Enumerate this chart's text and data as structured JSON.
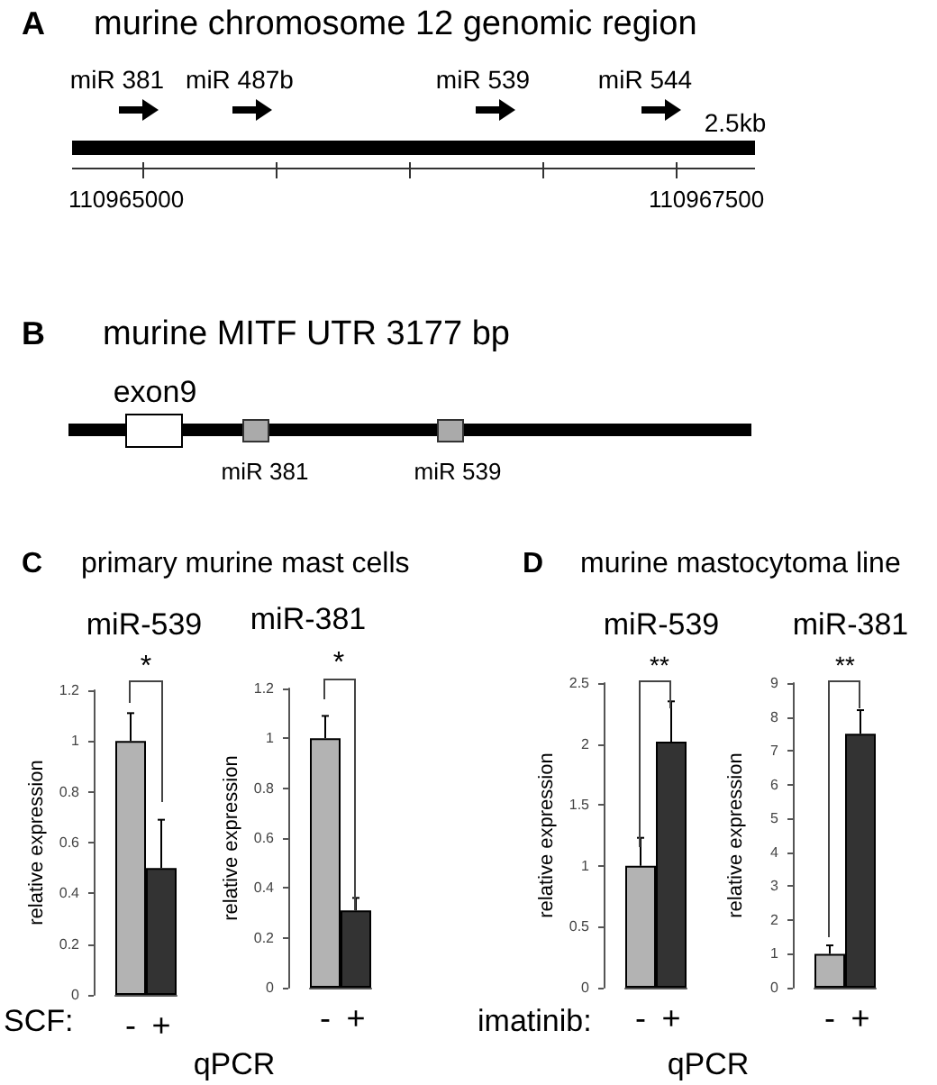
{
  "chart_data": [
    {
      "type": "other",
      "title": "murine chromosome 12 genomic region",
      "annotations": [
        "A",
        "miR 381",
        "miR 487b",
        "miR 539",
        "miR 544",
        "2.5kb",
        "110965000",
        "110967500"
      ]
    },
    {
      "type": "other",
      "title": "murine MITF UTR 3177 bp",
      "annotations": [
        "B",
        "exon9",
        "miR 381",
        "miR 539"
      ]
    },
    {
      "type": "bar",
      "title": "miR-539",
      "ylabel": "relative expression",
      "categories": [
        "-",
        "+"
      ],
      "values": [
        1,
        0.5
      ],
      "colors": [
        "#b3b3b3",
        "#333333"
      ],
      "errors": [
        [
          1,
          1.11
        ],
        [
          0.5,
          0.69
        ]
      ],
      "ylim": [
        0,
        1.2
      ],
      "yticks": [
        0,
        0.2,
        0.4,
        0.6,
        0.8,
        1,
        1.2
      ],
      "annotations": [
        "C",
        "primary murine mast cells",
        "*",
        "SCF:",
        "qPCR"
      ]
    },
    {
      "type": "bar",
      "title": "miR-381",
      "ylabel": "relative expression",
      "categories": [
        "-",
        "+"
      ],
      "values": [
        1,
        0.31
      ],
      "colors": [
        "#b3b3b3",
        "#333333"
      ],
      "errors": [
        [
          1,
          1.09
        ],
        [
          0.31,
          0.36
        ]
      ],
      "ylim": [
        0,
        1.2
      ],
      "yticks": [
        0,
        0.2,
        0.4,
        0.6,
        0.8,
        1,
        1.2
      ],
      "annotations": [
        "*"
      ]
    },
    {
      "type": "bar",
      "title": "miR-539",
      "ylabel": "relative expression",
      "categories": [
        "-",
        "+"
      ],
      "values": [
        1,
        2.02
      ],
      "colors": [
        "#b3b3b3",
        "#333333"
      ],
      "errors": [
        [
          1,
          1.23
        ],
        [
          2.02,
          2.35
        ]
      ],
      "ylim": [
        0,
        2.5
      ],
      "yticks": [
        0,
        0.5,
        1,
        1.5,
        2,
        2.5
      ],
      "annotations": [
        "D",
        "murine mastocytoma line",
        "**",
        "imatinib:",
        "qPCR"
      ]
    },
    {
      "type": "bar",
      "title": "miR-381",
      "ylabel": "relative expression",
      "categories": [
        "-",
        "+"
      ],
      "values": [
        1,
        7.5
      ],
      "colors": [
        "#b3b3b3",
        "#333333"
      ],
      "errors": [
        [
          1,
          1.25
        ],
        [
          7.5,
          8.2
        ]
      ],
      "ylim": [
        0,
        9
      ],
      "yticks": [
        0,
        1,
        2,
        3,
        4,
        5,
        6,
        7,
        8,
        9
      ],
      "annotations": [
        "**"
      ]
    }
  ]
}
